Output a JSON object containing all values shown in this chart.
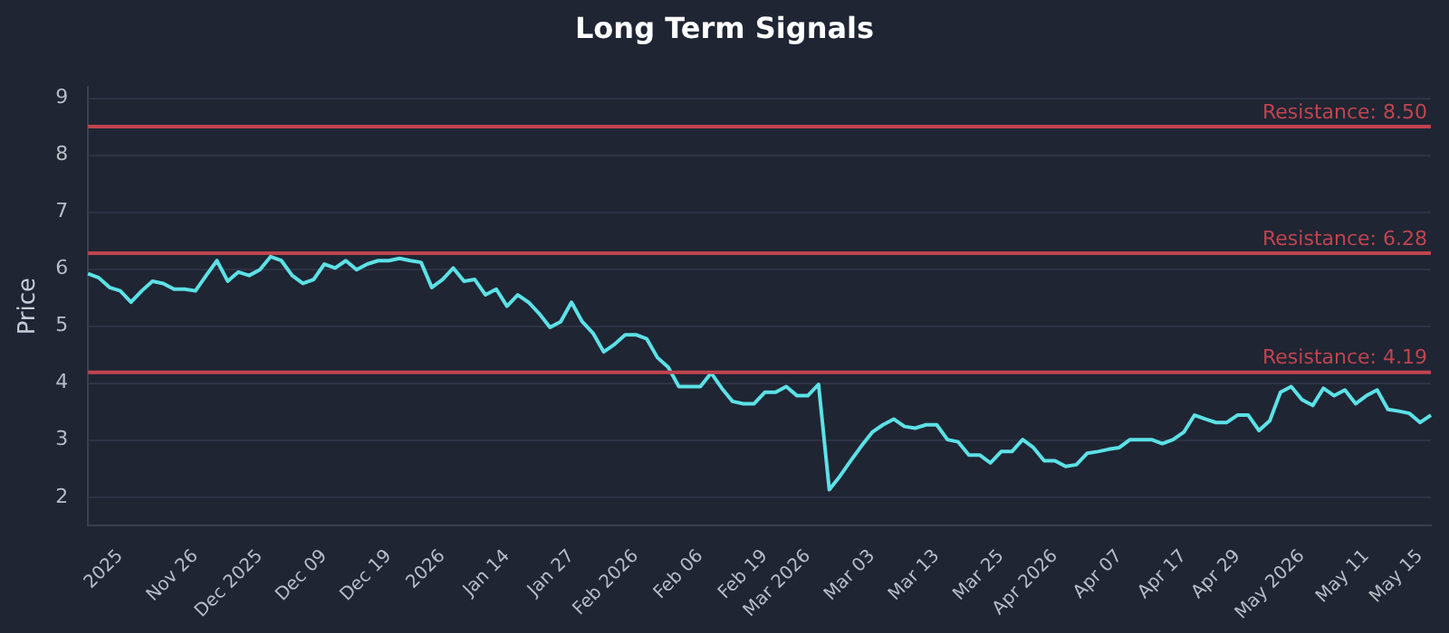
{
  "chart_data": {
    "type": "line",
    "title": "Long Term Signals",
    "ylabel": "Price",
    "categories": [
      null,
      null,
      null,
      "2025",
      null,
      null,
      null,
      null,
      null,
      null,
      "Nov 26",
      null,
      null,
      null,
      null,
      null,
      "Dec 2025",
      null,
      null,
      null,
      null,
      null,
      "Dec 09",
      null,
      null,
      null,
      null,
      null,
      "Dec 19",
      null,
      null,
      null,
      null,
      "2026",
      null,
      null,
      null,
      null,
      null,
      "Jan 14",
      null,
      null,
      null,
      null,
      null,
      "Jan 27",
      null,
      null,
      null,
      null,
      null,
      "Feb 2026",
      null,
      null,
      null,
      null,
      null,
      "Feb 06",
      null,
      null,
      null,
      null,
      null,
      "Feb 19",
      null,
      null,
      null,
      "Mar 2026",
      null,
      null,
      null,
      null,
      null,
      "Mar 03",
      null,
      null,
      null,
      null,
      null,
      "Mar 13",
      null,
      null,
      null,
      null,
      null,
      "Mar 25",
      null,
      null,
      null,
      null,
      "Apr 2026",
      null,
      null,
      null,
      null,
      null,
      "Apr 07",
      null,
      null,
      null,
      null,
      null,
      "Apr 17",
      null,
      null,
      null,
      null,
      "Apr 29",
      null,
      null,
      null,
      null,
      null,
      "May 2026",
      null,
      null,
      null,
      null,
      null,
      "May 11",
      null,
      null,
      null,
      null,
      "May 15",
      null
    ],
    "series": [
      {
        "color": "#5ce1e6",
        "values": [
          5.92,
          5.85,
          5.68,
          5.62,
          5.42,
          5.62,
          5.79,
          5.75,
          5.65,
          5.65,
          5.62,
          5.89,
          6.15,
          5.79,
          5.95,
          5.89,
          5.99,
          6.22,
          6.15,
          5.89,
          5.75,
          5.82,
          6.09,
          6.02,
          6.15,
          5.99,
          6.09,
          6.15,
          6.15,
          6.19,
          6.15,
          6.12,
          5.68,
          5.82,
          6.02,
          5.79,
          5.82,
          5.55,
          5.65,
          5.35,
          5.55,
          5.42,
          5.22,
          4.98,
          5.08,
          5.42,
          5.08,
          4.88,
          4.55,
          4.68,
          4.85,
          4.85,
          4.78,
          4.45,
          4.28,
          3.94,
          3.94,
          3.94,
          4.18,
          3.91,
          3.68,
          3.64,
          3.64,
          3.84,
          3.84,
          3.94,
          3.78,
          3.78,
          3.98,
          2.13,
          2.37,
          2.64,
          2.9,
          3.14,
          3.27,
          3.37,
          3.24,
          3.21,
          3.27,
          3.27,
          3.01,
          2.97,
          2.74,
          2.74,
          2.6,
          2.8,
          2.8,
          3.01,
          2.87,
          2.64,
          2.64,
          2.54,
          2.57,
          2.77,
          2.8,
          2.84,
          2.87,
          3.01,
          3.01,
          3.01,
          2.94,
          3.01,
          3.14,
          3.44,
          3.37,
          3.31,
          3.31,
          3.44,
          3.44,
          3.17,
          3.34,
          3.84,
          3.94,
          3.71,
          3.61,
          3.91,
          3.78,
          3.88,
          3.64,
          3.78,
          3.88,
          3.54,
          3.51,
          3.47,
          3.31,
          3.44
        ]
      }
    ],
    "ylim": [
      1.5,
      9.2
    ],
    "yticks": [
      2,
      3,
      4,
      5,
      6,
      7,
      8,
      9
    ],
    "grid": "y",
    "marker": "none",
    "line_style": "solid",
    "ref_lines": [
      {
        "axis": "y",
        "value": 8.5,
        "label": "Resistance: 8.50",
        "color": "#c0444f"
      },
      {
        "axis": "y",
        "value": 6.28,
        "label": "Resistance: 6.28",
        "color": "#c0444f"
      },
      {
        "axis": "y",
        "value": 4.19,
        "label": "Resistance: 4.19",
        "color": "#c0444f"
      }
    ]
  }
}
